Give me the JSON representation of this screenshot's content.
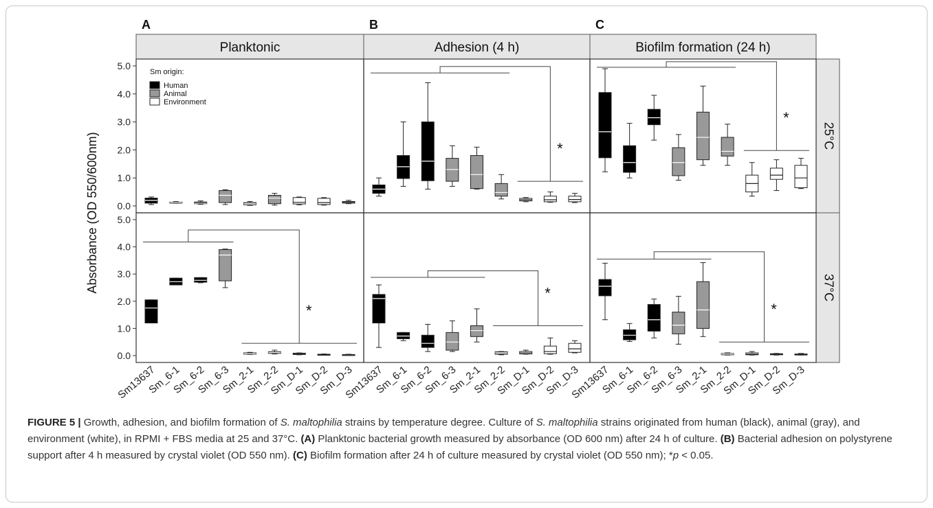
{
  "panels": [
    {
      "letter": "A",
      "title": "Planktonic"
    },
    {
      "letter": "B",
      "title": "Adhesion (4 h)"
    },
    {
      "letter": "C",
      "title": "Biofilm formation (24 h)"
    }
  ],
  "rows": [
    "25°C",
    "37°C"
  ],
  "ylabel": "Absorbance (OD 550/600nm)",
  "yticks": [
    "0.0",
    "1.0",
    "2.0",
    "3.0",
    "4.0",
    "5.0"
  ],
  "legend": {
    "title": "Sm origin:",
    "items": [
      {
        "label": "Human",
        "color": "#000000"
      },
      {
        "label": "Animal",
        "color": "#999999"
      },
      {
        "label": "Environment",
        "color": "#ffffff"
      }
    ]
  },
  "significance_label": "*",
  "chart_data": {
    "type": "box",
    "ylim": [
      0,
      5
    ],
    "categories": [
      "Sm13637",
      "Sm_6-1",
      "Sm_6-2",
      "Sm_6-3",
      "Sm_2-1",
      "Sm_2-2",
      "Sm_D-1",
      "Sm_D-2",
      "Sm_D-3"
    ],
    "group_of_category": [
      "Human",
      "Human",
      "Human",
      "Animal",
      "Animal",
      "Animal",
      "Environment",
      "Environment",
      "Environment"
    ],
    "colors": {
      "Human": "#000000",
      "Animal": "#999999",
      "Environment": "#ffffff"
    },
    "boxes": {
      "A_25": [
        [
          0.05,
          0.1,
          0.2,
          0.28,
          0.32
        ],
        [
          0.1,
          0.12,
          0.13,
          0.14,
          0.16
        ],
        [
          0.06,
          0.08,
          0.1,
          0.14,
          0.18
        ],
        [
          0.05,
          0.12,
          0.38,
          0.55,
          0.58
        ],
        [
          0.02,
          0.04,
          0.07,
          0.12,
          0.16
        ],
        [
          0.03,
          0.08,
          0.28,
          0.38,
          0.45
        ],
        [
          0.04,
          0.07,
          0.13,
          0.3,
          0.32
        ],
        [
          0.03,
          0.05,
          0.12,
          0.27,
          0.3
        ],
        [
          0.08,
          0.1,
          0.13,
          0.16,
          0.2
        ]
      ],
      "B_25": [
        [
          0.35,
          0.45,
          0.6,
          0.75,
          1.0
        ],
        [
          0.7,
          0.98,
          1.4,
          1.8,
          3.0
        ],
        [
          0.6,
          0.9,
          1.6,
          3.0,
          4.4
        ],
        [
          0.7,
          0.88,
          1.3,
          1.7,
          2.15
        ],
        [
          0.6,
          0.62,
          1.12,
          1.8,
          2.1
        ],
        [
          0.25,
          0.35,
          0.48,
          0.8,
          1.12
        ],
        [
          0.15,
          0.18,
          0.22,
          0.27,
          0.3
        ],
        [
          0.13,
          0.15,
          0.22,
          0.35,
          0.5
        ],
        [
          0.12,
          0.15,
          0.23,
          0.35,
          0.45
        ]
      ],
      "C_25": [
        [
          1.22,
          1.72,
          2.65,
          4.05,
          4.9
        ],
        [
          1.0,
          1.2,
          1.55,
          2.15,
          2.95
        ],
        [
          2.35,
          2.9,
          3.15,
          3.45,
          3.95
        ],
        [
          0.92,
          1.08,
          1.55,
          2.08,
          2.55
        ],
        [
          1.45,
          1.65,
          2.45,
          3.35,
          4.28
        ],
        [
          1.45,
          1.78,
          1.95,
          2.45,
          2.92
        ],
        [
          0.35,
          0.5,
          0.8,
          1.1,
          1.55
        ],
        [
          0.55,
          0.95,
          1.1,
          1.35,
          1.65
        ],
        [
          0.62,
          0.65,
          1.0,
          1.45,
          1.7
        ]
      ],
      "A_37": [
        [
          1.2,
          1.2,
          1.75,
          2.05,
          2.05
        ],
        [
          2.6,
          2.6,
          2.72,
          2.85,
          2.85
        ],
        [
          2.68,
          2.7,
          2.77,
          2.87,
          2.87
        ],
        [
          2.5,
          2.75,
          3.7,
          3.9,
          3.92
        ],
        [
          0.04,
          0.05,
          0.07,
          0.1,
          0.12
        ],
        [
          0.06,
          0.08,
          0.11,
          0.14,
          0.2
        ],
        [
          0.03,
          0.04,
          0.06,
          0.09,
          0.1
        ],
        [
          0.02,
          0.03,
          0.04,
          0.05,
          0.06
        ],
        [
          0.02,
          0.02,
          0.03,
          0.04,
          0.05
        ]
      ],
      "B_37": [
        [
          0.3,
          1.2,
          2.1,
          2.25,
          2.6
        ],
        [
          0.55,
          0.62,
          0.72,
          0.85,
          0.85
        ],
        [
          0.15,
          0.3,
          0.45,
          0.75,
          1.15
        ],
        [
          0.15,
          0.2,
          0.5,
          0.85,
          1.28
        ],
        [
          0.5,
          0.7,
          0.92,
          1.1,
          1.72
        ],
        [
          0.03,
          0.05,
          0.1,
          0.14,
          0.15
        ],
        [
          0.05,
          0.06,
          0.1,
          0.15,
          0.2
        ],
        [
          0.05,
          0.07,
          0.15,
          0.35,
          0.65
        ],
        [
          0.1,
          0.12,
          0.25,
          0.45,
          0.55
        ]
      ],
      "C_37": [
        [
          1.32,
          2.2,
          2.55,
          2.8,
          3.4
        ],
        [
          0.52,
          0.58,
          0.75,
          0.95,
          1.18
        ],
        [
          0.65,
          0.9,
          1.32,
          1.88,
          2.08
        ],
        [
          0.42,
          0.8,
          1.12,
          1.6,
          2.18
        ],
        [
          0.7,
          1.0,
          1.68,
          2.72,
          3.42
        ],
        [
          0.02,
          0.03,
          0.06,
          0.08,
          0.1
        ],
        [
          0.02,
          0.03,
          0.05,
          0.1,
          0.15
        ],
        [
          0.02,
          0.03,
          0.05,
          0.07,
          0.08
        ],
        [
          0.02,
          0.03,
          0.04,
          0.06,
          0.08
        ]
      ]
    }
  },
  "caption": {
    "fig_label": "FIGURE 5 |",
    "s1": " Growth, adhesion, and biofilm formation of ",
    "species": "S. maltophilia",
    "s2": " strains by temperature degree. Culture of ",
    "s3": " strains originated from human (black), animal (gray), and environment (white), in RPMI + FBS media at 25 and 37°C. ",
    "a_label": "(A)",
    "a_text": " Planktonic bacterial growth measured by absorbance (OD 600 nm) after 24 h of culture. ",
    "b_label": "(B)",
    "b_text": " Bacterial adhesion on polystyrene support after 4 h measured by crystal violet (OD 550 nm). ",
    "c_label": "(C)",
    "c_text": " Biofilm formation after 24 h of culture measured by crystal violet (OD 550 nm); *",
    "p": "p",
    "p_text": " < 0.05."
  }
}
